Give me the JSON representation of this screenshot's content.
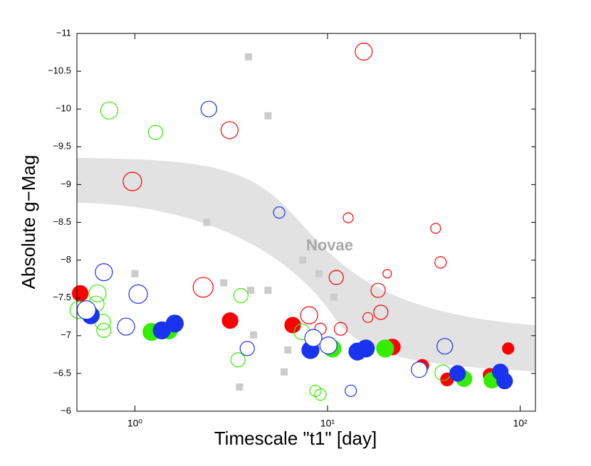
{
  "chart_data": {
    "type": "scatter",
    "xlabel": "Timescale \"t1\" [day]",
    "ylabel": "Absolute g−Mag",
    "annotation": "Novae",
    "xscale": "log",
    "xlim": [
      0.5,
      120
    ],
    "ylim": [
      -6,
      -11
    ],
    "xticks": [
      {
        "value": 1,
        "label": "10⁰"
      },
      {
        "value": 10,
        "label": "10¹"
      },
      {
        "value": 100,
        "label": "10²"
      }
    ],
    "yticks": [
      {
        "value": -6,
        "label": "−6"
      },
      {
        "value": -6.5,
        "label": "−6.5"
      },
      {
        "value": -7,
        "label": "−7"
      },
      {
        "value": -7.5,
        "label": "−7.5"
      },
      {
        "value": -8,
        "label": "−8"
      },
      {
        "value": -8.5,
        "label": "−8.5"
      },
      {
        "value": -9,
        "label": "−9"
      },
      {
        "value": -9.5,
        "label": "−9.5"
      },
      {
        "value": -10,
        "label": "−10"
      },
      {
        "value": -10.5,
        "label": "−10.5"
      },
      {
        "value": -11,
        "label": "−11"
      }
    ],
    "series": [
      {
        "color": "#cccccc",
        "marker": "square",
        "filled": true,
        "x": [
          3.89,
          4.91,
          2.36,
          1.0,
          2.89,
          3.99,
          4.91,
          7.43,
          9.03,
          10.8,
          4.13,
          6.22,
          5.95,
          3.49
        ],
        "values": [
          -10.69,
          -9.91,
          -8.5,
          -7.82,
          -7.7,
          -7.6,
          -7.6,
          -8.0,
          -7.82,
          -7.51,
          -7.01,
          -6.81,
          -6.52,
          -6.32
        ],
        "sizes": [
          5,
          5,
          5,
          5,
          5,
          5,
          5,
          5,
          5,
          5,
          5,
          5,
          5,
          5
        ]
      },
      {
        "color": "#ff0000",
        "marker": "circle",
        "filled": false,
        "x": [
          15.4,
          3.1,
          0.97,
          2.26,
          12.8,
          36.4,
          38.6,
          20.4,
          11.1,
          18.3,
          18.9,
          8.02,
          11.7,
          16.2,
          9.19
        ],
        "values": [
          -10.76,
          -9.72,
          -9.04,
          -7.64,
          -8.56,
          -8.42,
          -7.97,
          -7.82,
          -7.77,
          -7.6,
          -7.31,
          -7.27,
          -7.09,
          -7.24,
          -7.09
        ],
        "sizes": [
          12,
          12,
          13,
          14,
          7,
          7,
          8,
          6,
          10,
          10,
          10,
          12,
          9,
          7,
          8
        ]
      },
      {
        "color": "#ff0000",
        "marker": "circle",
        "filled": true,
        "x": [
          0.52,
          3.12,
          6.59,
          21.7,
          31.0,
          41.7,
          69.4,
          86.6
        ],
        "values": [
          -7.56,
          -7.2,
          -7.14,
          -6.85,
          -6.6,
          -6.42,
          -6.48,
          -6.83
        ],
        "sizes": [
          11,
          11,
          11,
          11,
          9,
          9,
          9,
          8
        ]
      },
      {
        "color": "#33ee00",
        "marker": "circle",
        "filled": false,
        "x": [
          0.736,
          1.28,
          0.51,
          0.64,
          0.63,
          0.68,
          0.69,
          3.55,
          3.43,
          7.37,
          8.65,
          9.19,
          39.6
        ],
        "values": [
          -9.98,
          -9.69,
          -7.34,
          -7.56,
          -7.42,
          -7.18,
          -7.07,
          -7.53,
          -6.68,
          -7.05,
          -6.27,
          -6.22,
          -6.51
        ],
        "sizes": [
          12,
          10,
          12,
          12,
          11,
          11,
          10,
          10,
          10,
          11,
          8,
          8,
          11
        ]
      },
      {
        "color": "#33ee00",
        "marker": "circle",
        "filled": true,
        "x": [
          1.22,
          1.5,
          10.6,
          19.9,
          51.1,
          71.2
        ],
        "values": [
          -7.05,
          -7.07,
          -6.83,
          -6.83,
          -6.43,
          -6.41
        ],
        "sizes": [
          12,
          12,
          12,
          12,
          11,
          11
        ]
      },
      {
        "color": "#1a33ee",
        "marker": "circle",
        "filled": false,
        "x": [
          2.42,
          0.69,
          1.04,
          0.9,
          5.61,
          3.83,
          13.2,
          40.6
        ],
        "values": [
          -10.0,
          -7.84,
          -7.55,
          -7.12,
          -8.63,
          -6.83,
          -6.27,
          -6.86
        ],
        "sizes": [
          11,
          12,
          13,
          12,
          8,
          10,
          8,
          11
        ]
      },
      {
        "color": "#1a33ee",
        "marker": "circle",
        "filled": true,
        "x": [
          0.59,
          1.38,
          1.61,
          8.15,
          14.3,
          15.8,
          47.3,
          78.8,
          83.0
        ],
        "values": [
          -7.27,
          -7.07,
          -7.16,
          -6.81,
          -6.79,
          -6.83,
          -6.5,
          -6.52,
          -6.4
        ],
        "sizes": [
          12,
          12,
          12,
          12,
          12,
          12,
          11,
          11,
          11
        ]
      },
      {
        "color": "#ffffff",
        "edgecolor": "#1a33ee",
        "marker": "circle",
        "filled": true,
        "x": [
          0.56,
          8.44,
          10.1,
          29.9
        ],
        "values": [
          -7.34,
          -6.97,
          -6.87,
          -6.55
        ],
        "sizes": [
          13,
          12,
          12,
          11
        ]
      }
    ]
  }
}
